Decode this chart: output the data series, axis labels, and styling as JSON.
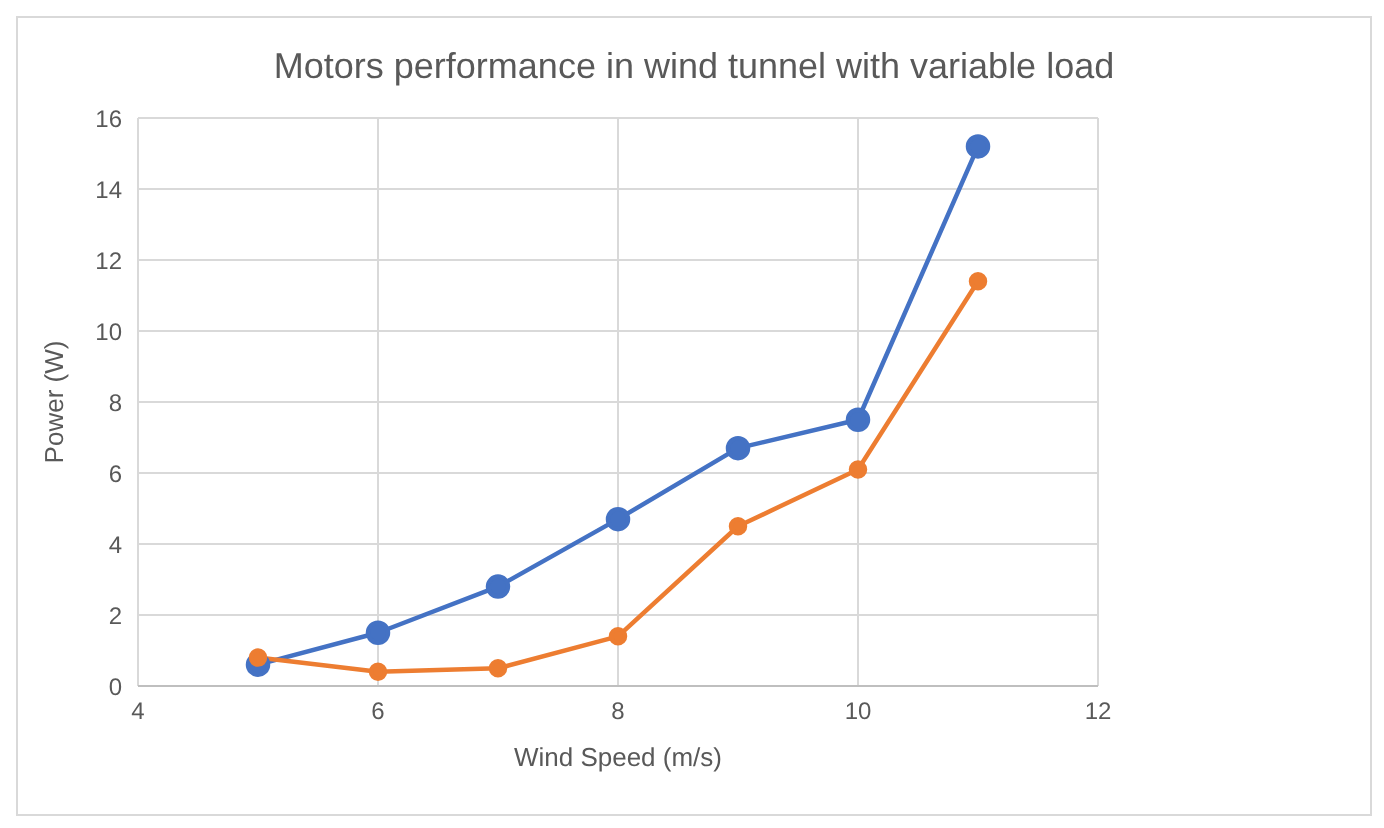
{
  "chart_data": {
    "type": "line",
    "title": "Motors performance in wind tunnel with variable load",
    "xlabel": "Wind Speed (m/s)",
    "ylabel": "Power (W)",
    "x": [
      5,
      6,
      7,
      8,
      9,
      10,
      11
    ],
    "series": [
      {
        "color": "#4472c4",
        "values": [
          0.6,
          1.5,
          2.8,
          4.7,
          6.7,
          7.5,
          15.2
        ]
      },
      {
        "color": "#ed7d31",
        "values": [
          0.8,
          0.4,
          0.5,
          1.4,
          4.5,
          6.1,
          11.4
        ]
      }
    ],
    "xlim": [
      4,
      12
    ],
    "xticks": [
      4,
      6,
      8,
      10,
      12
    ],
    "ylim": [
      0,
      16
    ],
    "yticks": [
      0,
      2,
      4,
      6,
      8,
      10,
      12,
      14,
      16
    ],
    "grid": true,
    "marker": "circle",
    "line_style": "solid"
  }
}
